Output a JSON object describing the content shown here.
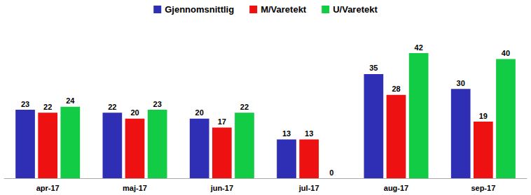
{
  "chart_data": {
    "type": "bar",
    "categories": [
      "apr-17",
      "maj-17",
      "jun-17",
      "jul-17",
      "aug-17",
      "sep-17"
    ],
    "series": [
      {
        "name": "Gjennomsnittlig",
        "color": "#2f2fb5",
        "values": [
          23,
          22,
          20,
          13,
          35,
          30
        ]
      },
      {
        "name": "M/Varetekt",
        "color": "#ee1111",
        "values": [
          22,
          20,
          17,
          13,
          28,
          19
        ]
      },
      {
        "name": "U/Varetekt",
        "color": "#11cc44",
        "values": [
          24,
          23,
          22,
          0,
          42,
          40
        ]
      }
    ],
    "legend": "top",
    "data_labels": true,
    "tick_labels": "x",
    "grid": false
  }
}
